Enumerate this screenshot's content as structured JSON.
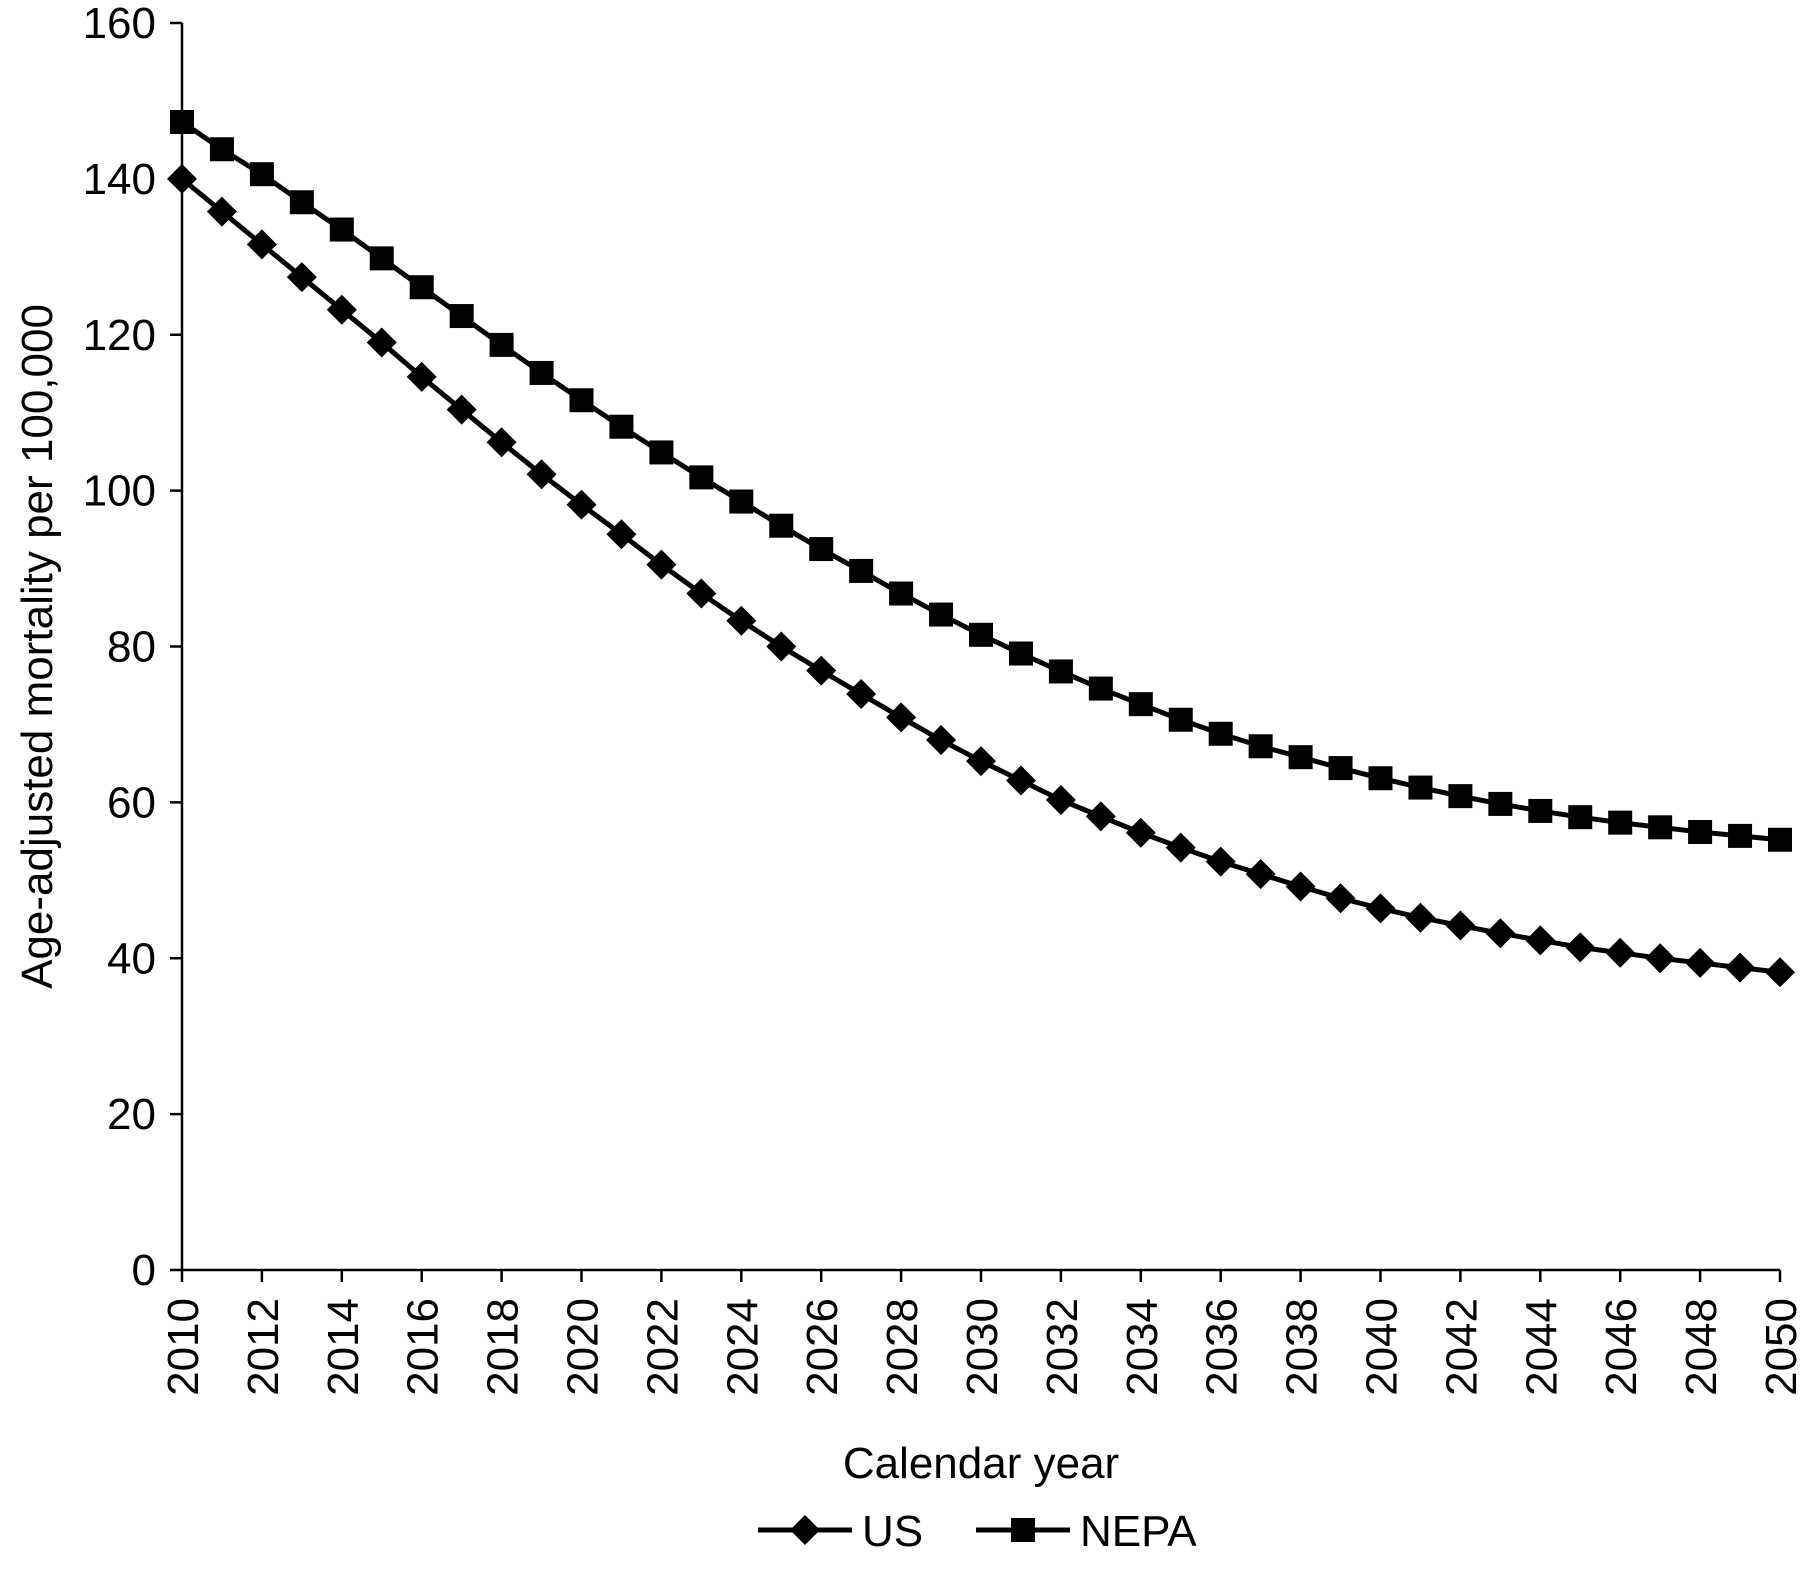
{
  "chart_data": {
    "type": "line",
    "xlabel": "Calendar year",
    "ylabel": "Age-adjusted mortality per 100,000",
    "ylim": [
      0,
      160
    ],
    "yticks": [
      "0",
      "20",
      "40",
      "60",
      "80",
      "100",
      "120",
      "140",
      "160"
    ],
    "xlim": [
      2010,
      2050
    ],
    "xtick_labels": [
      "2010",
      "2012",
      "2014",
      "2016",
      "2018",
      "2020",
      "2022",
      "2024",
      "2026",
      "2028",
      "2030",
      "2032",
      "2034",
      "2036",
      "2038",
      "2040",
      "2042",
      "2044",
      "2046",
      "2048",
      "2050"
    ],
    "grid": false,
    "legend_position": "bottom-center",
    "x": [
      2010,
      2011,
      2012,
      2013,
      2014,
      2015,
      2016,
      2017,
      2018,
      2019,
      2020,
      2021,
      2022,
      2023,
      2024,
      2025,
      2026,
      2027,
      2028,
      2029,
      2030,
      2031,
      2032,
      2033,
      2034,
      2035,
      2036,
      2037,
      2038,
      2039,
      2040,
      2041,
      2042,
      2043,
      2044,
      2045,
      2046,
      2047,
      2048,
      2049,
      2050
    ],
    "series": [
      {
        "name": "US",
        "marker": "diamond",
        "color": "#000000",
        "values": [
          140.0,
          135.8,
          131.6,
          127.4,
          123.2,
          119.0,
          114.6,
          110.4,
          106.2,
          102.1,
          98.2,
          94.4,
          90.5,
          86.8,
          83.3,
          80.0,
          76.9,
          73.9,
          70.9,
          68.0,
          65.3,
          62.8,
          60.3,
          58.2,
          56.1,
          54.2,
          52.4,
          50.8,
          49.2,
          47.7,
          46.4,
          45.2,
          44.2,
          43.2,
          42.3,
          41.4,
          40.7,
          40.0,
          39.4,
          38.8,
          38.2
        ]
      },
      {
        "name": "NEPA",
        "marker": "square",
        "color": "#000000",
        "values": [
          147.3,
          143.8,
          140.6,
          137.0,
          133.5,
          129.8,
          126.1,
          122.4,
          118.7,
          115.1,
          111.6,
          108.2,
          104.9,
          101.7,
          98.6,
          95.5,
          92.5,
          89.7,
          86.8,
          84.1,
          81.5,
          79.1,
          76.8,
          74.6,
          72.6,
          70.6,
          68.8,
          67.2,
          65.8,
          64.4,
          63.1,
          61.9,
          60.8,
          59.8,
          58.9,
          58.1,
          57.4,
          56.8,
          56.2,
          55.7,
          55.2
        ]
      }
    ]
  }
}
